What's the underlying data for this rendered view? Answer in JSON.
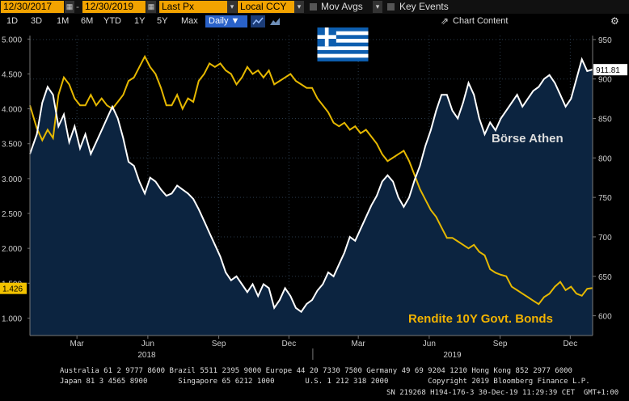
{
  "toolbar": {
    "start_date": "12/30/2017",
    "end_date": "12/30/2019",
    "field": "Last Px",
    "currency": "Local CCY",
    "mov_avgs": "Mov Avgs",
    "key_events": "Key Events"
  },
  "ranges": [
    "1D",
    "3D",
    "1M",
    "6M",
    "YTD",
    "1Y",
    "5Y",
    "Max"
  ],
  "period": "Daily ▼",
  "chart_content_label": "Chart Content",
  "colors": {
    "index_line": "#ffffff",
    "bond_line": "#e6b800",
    "area_fill": "#0c2440",
    "label_bg": "#f2c200"
  },
  "flag_icon": "greece-flag-icon",
  "chart_data": {
    "type": "line",
    "left_axis_ticks": [
      "1.000",
      "1.500",
      "2.000",
      "2.500",
      "3.000",
      "3.500",
      "4.000",
      "4.500",
      "5.000"
    ],
    "right_axis_ticks": [
      "600",
      "650",
      "700",
      "750",
      "800",
      "850",
      "900",
      "950"
    ],
    "ylim_left": [
      0.75,
      5.05
    ],
    "ylim_right": [
      575,
      955
    ],
    "month_labels": [
      {
        "label": "Mar",
        "date": "2018-03-01"
      },
      {
        "label": "Jun",
        "date": "2018-06-01"
      },
      {
        "label": "Sep",
        "date": "2018-09-01"
      },
      {
        "label": "Dec",
        "date": "2018-12-01"
      },
      {
        "label": "Mar",
        "date": "2019-03-01"
      },
      {
        "label": "Jun",
        "date": "2019-06-01"
      },
      {
        "label": "Sep",
        "date": "2019-09-01"
      },
      {
        "label": "Dec",
        "date": "2019-12-01"
      }
    ],
    "year_labels": [
      {
        "label": "2018",
        "date": "2018-07-01"
      },
      {
        "label": "2019",
        "date": "2019-07-01"
      }
    ],
    "xlim": [
      "2017-12-30",
      "2019-12-30"
    ],
    "series": [
      {
        "name": "Börse Athen",
        "axis": "right",
        "last_value": "911.81",
        "points": [
          [
            "2017-12-30",
            805
          ],
          [
            "2018-01-08",
            830
          ],
          [
            "2018-01-15",
            870
          ],
          [
            "2018-01-22",
            890
          ],
          [
            "2018-01-29",
            880
          ],
          [
            "2018-02-05",
            840
          ],
          [
            "2018-02-12",
            855
          ],
          [
            "2018-02-19",
            820
          ],
          [
            "2018-02-26",
            840
          ],
          [
            "2018-03-05",
            812
          ],
          [
            "2018-03-12",
            830
          ],
          [
            "2018-03-19",
            805
          ],
          [
            "2018-03-26",
            820
          ],
          [
            "2018-04-02",
            835
          ],
          [
            "2018-04-09",
            850
          ],
          [
            "2018-04-16",
            865
          ],
          [
            "2018-04-23",
            850
          ],
          [
            "2018-04-30",
            825
          ],
          [
            "2018-05-07",
            795
          ],
          [
            "2018-05-14",
            790
          ],
          [
            "2018-05-21",
            770
          ],
          [
            "2018-05-28",
            755
          ],
          [
            "2018-06-04",
            775
          ],
          [
            "2018-06-11",
            770
          ],
          [
            "2018-06-18",
            760
          ],
          [
            "2018-06-25",
            752
          ],
          [
            "2018-07-02",
            755
          ],
          [
            "2018-07-09",
            765
          ],
          [
            "2018-07-16",
            760
          ],
          [
            "2018-07-23",
            755
          ],
          [
            "2018-07-30",
            748
          ],
          [
            "2018-08-06",
            735
          ],
          [
            "2018-08-13",
            720
          ],
          [
            "2018-08-20",
            705
          ],
          [
            "2018-08-27",
            690
          ],
          [
            "2018-09-03",
            675
          ],
          [
            "2018-09-10",
            655
          ],
          [
            "2018-09-17",
            645
          ],
          [
            "2018-09-24",
            650
          ],
          [
            "2018-10-01",
            640
          ],
          [
            "2018-10-08",
            630
          ],
          [
            "2018-10-15",
            640
          ],
          [
            "2018-10-22",
            625
          ],
          [
            "2018-10-29",
            640
          ],
          [
            "2018-11-05",
            635
          ],
          [
            "2018-11-12",
            610
          ],
          [
            "2018-11-19",
            620
          ],
          [
            "2018-11-26",
            635
          ],
          [
            "2018-12-03",
            625
          ],
          [
            "2018-12-10",
            610
          ],
          [
            "2018-12-17",
            605
          ],
          [
            "2018-12-24",
            615
          ],
          [
            "2018-12-31",
            620
          ],
          [
            "2019-01-07",
            632
          ],
          [
            "2019-01-14",
            640
          ],
          [
            "2019-01-21",
            655
          ],
          [
            "2019-01-28",
            650
          ],
          [
            "2019-02-04",
            665
          ],
          [
            "2019-02-11",
            680
          ],
          [
            "2019-02-18",
            700
          ],
          [
            "2019-02-25",
            695
          ],
          [
            "2019-03-04",
            710
          ],
          [
            "2019-03-11",
            725
          ],
          [
            "2019-03-18",
            740
          ],
          [
            "2019-03-25",
            752
          ],
          [
            "2019-04-01",
            770
          ],
          [
            "2019-04-08",
            778
          ],
          [
            "2019-04-15",
            770
          ],
          [
            "2019-04-22",
            750
          ],
          [
            "2019-04-29",
            738
          ],
          [
            "2019-05-06",
            750
          ],
          [
            "2019-05-13",
            772
          ],
          [
            "2019-05-20",
            790
          ],
          [
            "2019-05-27",
            815
          ],
          [
            "2019-06-03",
            835
          ],
          [
            "2019-06-10",
            860
          ],
          [
            "2019-06-17",
            880
          ],
          [
            "2019-06-24",
            880
          ],
          [
            "2019-07-01",
            860
          ],
          [
            "2019-07-08",
            850
          ],
          [
            "2019-07-15",
            870
          ],
          [
            "2019-07-22",
            895
          ],
          [
            "2019-07-29",
            880
          ],
          [
            "2019-08-05",
            850
          ],
          [
            "2019-08-12",
            830
          ],
          [
            "2019-08-19",
            845
          ],
          [
            "2019-08-26",
            835
          ],
          [
            "2019-09-02",
            850
          ],
          [
            "2019-09-09",
            860
          ],
          [
            "2019-09-16",
            870
          ],
          [
            "2019-09-23",
            880
          ],
          [
            "2019-09-30",
            865
          ],
          [
            "2019-10-07",
            875
          ],
          [
            "2019-10-14",
            885
          ],
          [
            "2019-10-21",
            890
          ],
          [
            "2019-10-28",
            900
          ],
          [
            "2019-11-04",
            905
          ],
          [
            "2019-11-11",
            895
          ],
          [
            "2019-11-18",
            880
          ],
          [
            "2019-11-25",
            865
          ],
          [
            "2019-12-02",
            875
          ],
          [
            "2019-12-09",
            900
          ],
          [
            "2019-12-16",
            925
          ],
          [
            "2019-12-23",
            910
          ],
          [
            "2019-12-30",
            912
          ]
        ]
      },
      {
        "name": "Rendite 10Y Govt. Bonds",
        "axis": "left",
        "last_value": "1.426",
        "points": [
          [
            "2017-12-30",
            4.05
          ],
          [
            "2018-01-08",
            3.72
          ],
          [
            "2018-01-15",
            3.55
          ],
          [
            "2018-01-22",
            3.7
          ],
          [
            "2018-01-29",
            3.58
          ],
          [
            "2018-02-05",
            4.2
          ],
          [
            "2018-02-12",
            4.45
          ],
          [
            "2018-02-19",
            4.35
          ],
          [
            "2018-02-26",
            4.15
          ],
          [
            "2018-03-05",
            4.05
          ],
          [
            "2018-03-12",
            4.05
          ],
          [
            "2018-03-19",
            4.2
          ],
          [
            "2018-03-26",
            4.05
          ],
          [
            "2018-04-02",
            4.15
          ],
          [
            "2018-04-09",
            4.05
          ],
          [
            "2018-04-16",
            4.0
          ],
          [
            "2018-04-23",
            4.1
          ],
          [
            "2018-04-30",
            4.2
          ],
          [
            "2018-05-07",
            4.4
          ],
          [
            "2018-05-14",
            4.45
          ],
          [
            "2018-05-21",
            4.6
          ],
          [
            "2018-05-28",
            4.75
          ],
          [
            "2018-06-04",
            4.6
          ],
          [
            "2018-06-11",
            4.5
          ],
          [
            "2018-06-18",
            4.3
          ],
          [
            "2018-06-25",
            4.05
          ],
          [
            "2018-07-02",
            4.05
          ],
          [
            "2018-07-09",
            4.2
          ],
          [
            "2018-07-16",
            4.0
          ],
          [
            "2018-07-23",
            4.15
          ],
          [
            "2018-07-30",
            4.1
          ],
          [
            "2018-08-06",
            4.4
          ],
          [
            "2018-08-13",
            4.5
          ],
          [
            "2018-08-20",
            4.65
          ],
          [
            "2018-08-27",
            4.6
          ],
          [
            "2018-09-03",
            4.65
          ],
          [
            "2018-09-10",
            4.55
          ],
          [
            "2018-09-17",
            4.5
          ],
          [
            "2018-09-24",
            4.35
          ],
          [
            "2018-10-01",
            4.45
          ],
          [
            "2018-10-08",
            4.6
          ],
          [
            "2018-10-15",
            4.5
          ],
          [
            "2018-10-22",
            4.55
          ],
          [
            "2018-10-29",
            4.45
          ],
          [
            "2018-11-05",
            4.55
          ],
          [
            "2018-11-12",
            4.35
          ],
          [
            "2018-11-19",
            4.4
          ],
          [
            "2018-11-26",
            4.45
          ],
          [
            "2018-12-03",
            4.5
          ],
          [
            "2018-12-10",
            4.4
          ],
          [
            "2018-12-17",
            4.35
          ],
          [
            "2018-12-24",
            4.3
          ],
          [
            "2018-12-31",
            4.3
          ],
          [
            "2019-01-07",
            4.15
          ],
          [
            "2019-01-14",
            4.05
          ],
          [
            "2019-01-21",
            3.95
          ],
          [
            "2019-01-28",
            3.8
          ],
          [
            "2019-02-04",
            3.75
          ],
          [
            "2019-02-11",
            3.8
          ],
          [
            "2019-02-18",
            3.7
          ],
          [
            "2019-02-25",
            3.75
          ],
          [
            "2019-03-04",
            3.65
          ],
          [
            "2019-03-11",
            3.7
          ],
          [
            "2019-03-18",
            3.6
          ],
          [
            "2019-03-25",
            3.5
          ],
          [
            "2019-04-01",
            3.35
          ],
          [
            "2019-04-08",
            3.25
          ],
          [
            "2019-04-15",
            3.3
          ],
          [
            "2019-04-22",
            3.35
          ],
          [
            "2019-04-29",
            3.4
          ],
          [
            "2019-05-06",
            3.25
          ],
          [
            "2019-05-13",
            3.05
          ],
          [
            "2019-05-20",
            2.85
          ],
          [
            "2019-05-27",
            2.7
          ],
          [
            "2019-06-03",
            2.55
          ],
          [
            "2019-06-10",
            2.45
          ],
          [
            "2019-06-17",
            2.3
          ],
          [
            "2019-06-24",
            2.15
          ],
          [
            "2019-07-01",
            2.15
          ],
          [
            "2019-07-08",
            2.1
          ],
          [
            "2019-07-15",
            2.05
          ],
          [
            "2019-07-22",
            2.0
          ],
          [
            "2019-07-29",
            2.05
          ],
          [
            "2019-08-05",
            1.95
          ],
          [
            "2019-08-12",
            1.9
          ],
          [
            "2019-08-19",
            1.7
          ],
          [
            "2019-08-26",
            1.65
          ],
          [
            "2019-09-02",
            1.62
          ],
          [
            "2019-09-09",
            1.6
          ],
          [
            "2019-09-16",
            1.45
          ],
          [
            "2019-09-23",
            1.4
          ],
          [
            "2019-09-30",
            1.35
          ],
          [
            "2019-10-07",
            1.3
          ],
          [
            "2019-10-14",
            1.25
          ],
          [
            "2019-10-21",
            1.2
          ],
          [
            "2019-10-28",
            1.3
          ],
          [
            "2019-11-04",
            1.35
          ],
          [
            "2019-11-11",
            1.45
          ],
          [
            "2019-11-18",
            1.52
          ],
          [
            "2019-11-25",
            1.4
          ],
          [
            "2019-12-02",
            1.45
          ],
          [
            "2019-12-09",
            1.35
          ],
          [
            "2019-12-16",
            1.32
          ],
          [
            "2019-12-23",
            1.42
          ],
          [
            "2019-12-30",
            1.43
          ]
        ]
      }
    ],
    "legend_labels": [
      {
        "text": "Börse Athen",
        "color": "#ffffff"
      },
      {
        "text": "Rendite 10Y Govt. Bonds",
        "color": "#f2b300"
      }
    ]
  },
  "footer": {
    "line1": "Australia 61 2 9777 8600 Brazil 5511 2395 9000 Europe 44 20 7330 7500 Germany 49 69 9204 1210 Hong Kong 852 2977 6000",
    "line2": "Japan 81 3 4565 8900       Singapore 65 6212 1000       U.S. 1 212 318 2000         Copyright 2019 Bloomberg Finance L.P.",
    "line3": "SN 219268 H194-176-3 30-Dec-19 11:29:39 CET  GMT+1:00"
  }
}
